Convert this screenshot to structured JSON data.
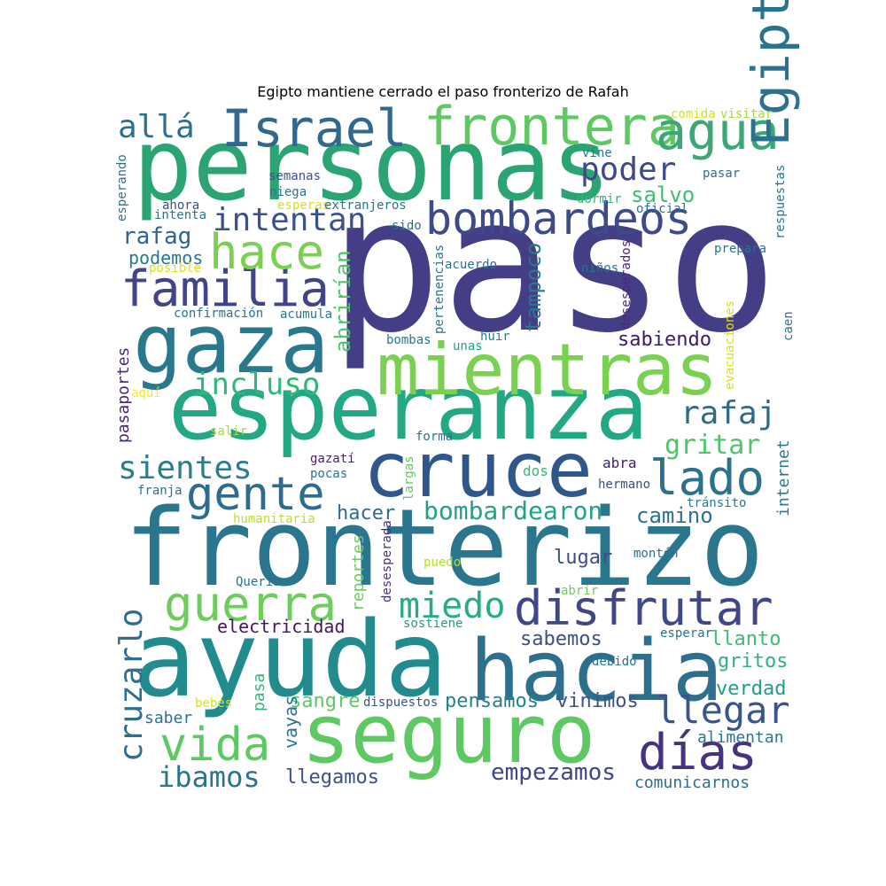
{
  "chart_data": {
    "type": "wordcloud",
    "title": "Egipto mantiene cerrado el paso fronterizo de Rafah",
    "words": [
      {
        "text": "paso",
        "color": "#433e85"
      },
      {
        "text": "personas",
        "color": "#2aa473"
      },
      {
        "text": "fronterizo",
        "color": "#2a768e"
      },
      {
        "text": "ayuda",
        "color": "#228b8d"
      },
      {
        "text": "esperanza",
        "color": "#22a884"
      },
      {
        "text": "seguro",
        "color": "#5ec962"
      },
      {
        "text": "hacia",
        "color": "#2d708e"
      },
      {
        "text": "mientras",
        "color": "#7ad151"
      },
      {
        "text": "gaza",
        "color": "#2a788e"
      },
      {
        "text": "cruce",
        "color": "#30578c"
      },
      {
        "text": "frontera",
        "color": "#5ec962"
      },
      {
        "text": "Israel",
        "color": "#31688e"
      },
      {
        "text": "agua",
        "color": "#3ba676"
      },
      {
        "text": "bombardeos",
        "color": "#3e4a89"
      },
      {
        "text": "familia",
        "color": "#414487"
      },
      {
        "text": "Egipto",
        "color": "#2c728e"
      },
      {
        "text": "hace",
        "color": "#7ad151"
      },
      {
        "text": "intentan",
        "color": "#3b528b"
      },
      {
        "text": "poder",
        "color": "#3e4989"
      },
      {
        "text": "allá",
        "color": "#2d6f8e"
      },
      {
        "text": "disfrutar",
        "color": "#3f4788"
      },
      {
        "text": "guerra",
        "color": "#6ccd5a"
      },
      {
        "text": "miedo",
        "color": "#27ad81"
      },
      {
        "text": "lado",
        "color": "#2c728e"
      },
      {
        "text": "gente",
        "color": "#2f6b8e"
      },
      {
        "text": "vida",
        "color": "#5ec962"
      },
      {
        "text": "días",
        "color": "#46327e"
      },
      {
        "text": "llegar",
        "color": "#39568c"
      },
      {
        "text": "incluso",
        "color": "#32b67a"
      },
      {
        "text": "sientes",
        "color": "#2c7d8e"
      },
      {
        "text": "rafaj",
        "color": "#30698e"
      },
      {
        "text": "cruzarlo",
        "color": "#2e6e8e"
      },
      {
        "text": "bombardearon",
        "color": "#20a386"
      },
      {
        "text": "gritar",
        "color": "#50c46a"
      },
      {
        "text": "salvo",
        "color": "#3fbc73"
      },
      {
        "text": "rafag",
        "color": "#33638d"
      },
      {
        "text": "tampoco",
        "color": "#2a788e"
      },
      {
        "text": "abrirían",
        "color": "#50c46a"
      },
      {
        "text": "sabiendo",
        "color": "#3b1c6c"
      },
      {
        "text": "camino",
        "color": "#2d718e"
      },
      {
        "text": "hacer",
        "color": "#2e6d8e"
      },
      {
        "text": "lugar",
        "color": "#3d4d8a"
      },
      {
        "text": "podemos",
        "color": "#2a788e"
      },
      {
        "text": "ibamos",
        "color": "#2b748e"
      },
      {
        "text": "empezamos",
        "color": "#404588"
      },
      {
        "text": "sabemos",
        "color": "#3c4f8a"
      },
      {
        "text": "llanto",
        "color": "#3dbc74"
      },
      {
        "text": "gritos",
        "color": "#2db27d"
      },
      {
        "text": "verdad",
        "color": "#1f9f88"
      },
      {
        "text": "pensamos",
        "color": "#26818e"
      },
      {
        "text": "vinimos",
        "color": "#3b518b"
      },
      {
        "text": "sangre",
        "color": "#5ec962"
      },
      {
        "text": "electricidad",
        "color": "#471365"
      },
      {
        "text": "llegamos",
        "color": "#3c508b"
      },
      {
        "text": "vayas",
        "color": "#2c728e"
      },
      {
        "text": "pasa",
        "color": "#35b779"
      },
      {
        "text": "reportes",
        "color": "#6ccd5a"
      },
      {
        "text": "alimentan",
        "color": "#2a788e"
      },
      {
        "text": "comunicarnos",
        "color": "#2f6c8e"
      },
      {
        "text": "pasaportes",
        "color": "#482777"
      },
      {
        "text": "internet",
        "color": "#2a788e"
      },
      {
        "text": "tránsito",
        "color": "#2a788e"
      },
      {
        "text": "abra",
        "color": "#3b1c6c"
      },
      {
        "text": "hermano",
        "color": "#3d4e8a"
      },
      {
        "text": "dos",
        "color": "#35b779"
      },
      {
        "text": "largas",
        "color": "#5ec962"
      },
      {
        "text": "gazatí",
        "color": "#481f70"
      },
      {
        "text": "pocas",
        "color": "#2c728e"
      },
      {
        "text": "franja",
        "color": "#2c728e"
      },
      {
        "text": "humanitaria",
        "color": "#bddf26"
      },
      {
        "text": "desesperada",
        "color": "#472d7b"
      },
      {
        "text": "puedo",
        "color": "#b5de2b"
      },
      {
        "text": "Quería",
        "color": "#2c728e"
      },
      {
        "text": "abrir",
        "color": "#6ccd5a"
      },
      {
        "text": "montón",
        "color": "#2c728e"
      },
      {
        "text": "sostiene",
        "color": "#1f9f88"
      },
      {
        "text": "esperar",
        "color": "#2c728e"
      },
      {
        "text": "debido",
        "color": "#2c728e"
      },
      {
        "text": "dispuestos",
        "color": "#3b518b"
      },
      {
        "text": "bebés",
        "color": "#d8e219"
      },
      {
        "text": "saber",
        "color": "#2c728e"
      },
      {
        "text": "forma",
        "color": "#2c728e"
      },
      {
        "text": "salir",
        "color": "#a5db36"
      },
      {
        "text": "aquí",
        "color": "#fde725"
      },
      {
        "text": "evacuaciones",
        "color": "#d8e219"
      },
      {
        "text": "caen",
        "color": "#2c728e"
      },
      {
        "text": "huir",
        "color": "#287d8e"
      },
      {
        "text": "unas",
        "color": "#1fa188"
      },
      {
        "text": "bombas",
        "color": "#2c728e"
      },
      {
        "text": "acumula",
        "color": "#2a788e"
      },
      {
        "text": "confirmación",
        "color": "#2c728e"
      },
      {
        "text": "pertenencias",
        "color": "#2c728e"
      },
      {
        "text": "desesperados",
        "color": "#482878"
      },
      {
        "text": "niños",
        "color": "#2c728e"
      },
      {
        "text": "acuerdo",
        "color": "#2c728e"
      },
      {
        "text": "prepara",
        "color": "#2c728e"
      },
      {
        "text": "posible",
        "color": "#d8e219"
      },
      {
        "text": "sido",
        "color": "#2c728e"
      },
      {
        "text": "intenta",
        "color": "#2c728e"
      },
      {
        "text": "ahora",
        "color": "#3b518b"
      },
      {
        "text": "esperando",
        "color": "#2c728e"
      },
      {
        "text": "semanas",
        "color": "#3b518b"
      },
      {
        "text": "niega",
        "color": "#2c728e"
      },
      {
        "text": "esperas",
        "color": "#d8e219"
      },
      {
        "text": "extranjeros",
        "color": "#2c728e"
      },
      {
        "text": "dormir",
        "color": "#35b779"
      },
      {
        "text": "oficial",
        "color": "#2c728e"
      },
      {
        "text": "vine",
        "color": "#2c728e"
      },
      {
        "text": "pasar",
        "color": "#2c728e"
      },
      {
        "text": "respuestas",
        "color": "#2c728e"
      },
      {
        "text": "comida",
        "color": "#d8e219"
      },
      {
        "text": "visitar",
        "color": "#a5db36"
      }
    ]
  }
}
